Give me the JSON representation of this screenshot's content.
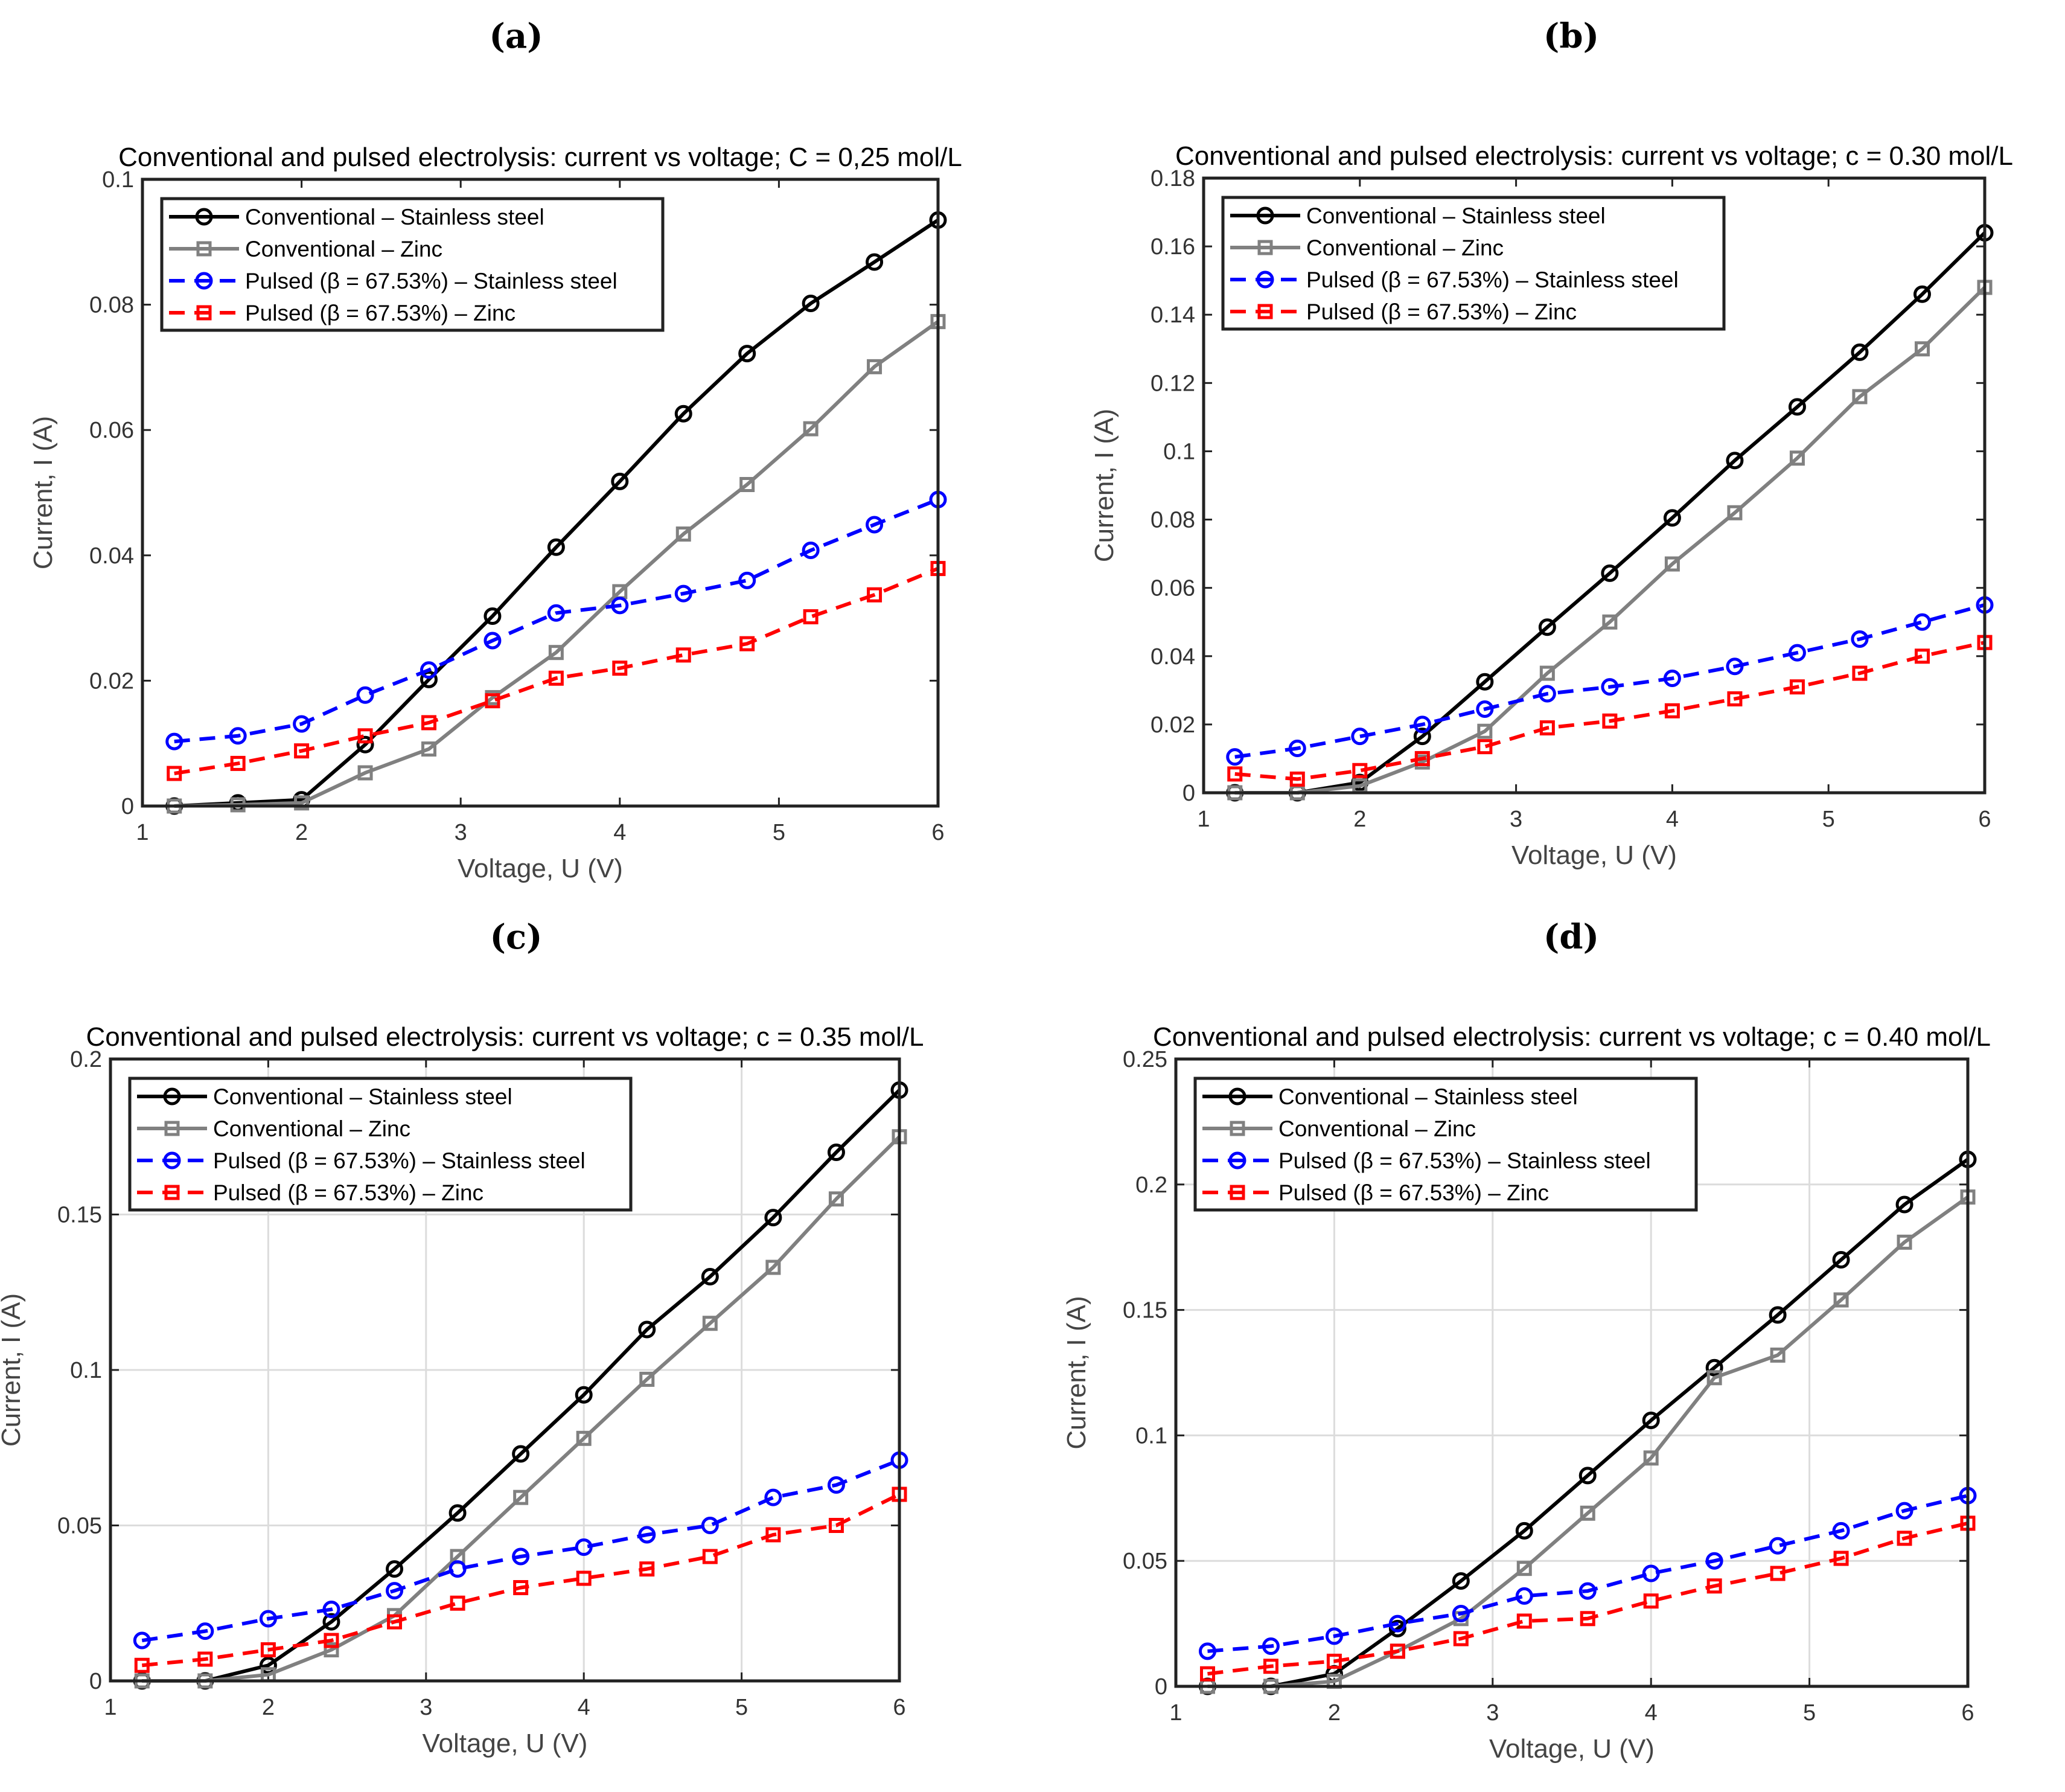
{
  "chart_data": [
    {
      "panel": "(a)",
      "type": "line",
      "title": "Conventional and pulsed electrolysis: current vs voltage; C = 0,25 mol/L",
      "xlabel": "Voltage, U (V)",
      "ylabel": "Current, I (A)",
      "xlim": [
        1,
        6
      ],
      "ylim": [
        0,
        0.1
      ],
      "xticks": [
        "1",
        "2",
        "3",
        "4",
        "5",
        "6"
      ],
      "yticks": [
        "0",
        "0.02",
        "0.04",
        "0.06",
        "0.08",
        "0.1"
      ],
      "grid": false,
      "legend_position": "top-left",
      "x": [
        1.2,
        1.6,
        2.0,
        2.4,
        2.8,
        3.2,
        3.6,
        4.0,
        4.4,
        4.8,
        5.2,
        5.6,
        6.0
      ],
      "series": [
        {
          "name": "Conventional – Stainless steel",
          "color": "#000000",
          "style": "solid",
          "marker": "circle",
          "values": [
            0,
            0.0005,
            0.001,
            0.0098,
            0.0202,
            0.0303,
            0.0413,
            0.0518,
            0.0626,
            0.0722,
            0.0802,
            0.0868,
            0.0935
          ]
        },
        {
          "name": "Conventional – Zinc",
          "color": "#808080",
          "style": "solid",
          "marker": "square",
          "values": [
            0,
            0.0002,
            0.0005,
            0.0053,
            0.0091,
            0.0173,
            0.0245,
            0.0342,
            0.0434,
            0.0513,
            0.0602,
            0.0701,
            0.0773
          ]
        },
        {
          "name": "Pulsed (β = 67.53%)  – Stainless steel",
          "color": "#0000ff",
          "style": "dashed",
          "marker": "circle",
          "values": [
            0.0103,
            0.0112,
            0.0131,
            0.0177,
            0.0217,
            0.0264,
            0.0308,
            0.032,
            0.0339,
            0.036,
            0.0408,
            0.0449,
            0.0489
          ]
        },
        {
          "name": "Pulsed (β = 67.53%)  – Zinc",
          "color": "#ff0000",
          "style": "dashed",
          "marker": "square",
          "values": [
            0.0052,
            0.0068,
            0.0088,
            0.0112,
            0.0133,
            0.0168,
            0.0204,
            0.022,
            0.0241,
            0.0259,
            0.0302,
            0.0337,
            0.0379
          ]
        }
      ]
    },
    {
      "panel": "(b)",
      "type": "line",
      "title": "Conventional and pulsed electrolysis: current vs voltage; c = 0.30 mol/L",
      "xlabel": "Voltage, U (V)",
      "ylabel": "Current, I (A)",
      "xlim": [
        1,
        6
      ],
      "ylim": [
        0,
        0.18
      ],
      "xticks": [
        "1",
        "2",
        "3",
        "4",
        "5",
        "6"
      ],
      "yticks": [
        "0",
        "0.02",
        "0.04",
        "0.06",
        "0.08",
        "0.1",
        "0.12",
        "0.14",
        "0.16",
        "0.18"
      ],
      "grid": false,
      "legend_position": "top-left",
      "x": [
        1.2,
        1.6,
        2.0,
        2.4,
        2.8,
        3.2,
        3.6,
        4.0,
        4.4,
        4.8,
        5.2,
        5.6,
        6.0
      ],
      "series": [
        {
          "name": "Conventional – Stainless steel",
          "color": "#000000",
          "style": "solid",
          "marker": "circle",
          "values": [
            0,
            0,
            0.003,
            0.0165,
            0.0325,
            0.0485,
            0.0643,
            0.0805,
            0.0973,
            0.113,
            0.129,
            0.146,
            0.164
          ]
        },
        {
          "name": "Conventional – Zinc",
          "color": "#808080",
          "style": "solid",
          "marker": "square",
          "values": [
            0,
            0,
            0.002,
            0.009,
            0.018,
            0.035,
            0.05,
            0.067,
            0.082,
            0.098,
            0.116,
            0.13,
            0.148
          ]
        },
        {
          "name": "Pulsed (β = 67.53%)  – Stainless steel",
          "color": "#0000ff",
          "style": "dashed",
          "marker": "circle",
          "values": [
            0.0105,
            0.013,
            0.0165,
            0.02,
            0.0245,
            0.029,
            0.031,
            0.0335,
            0.037,
            0.041,
            0.045,
            0.05,
            0.055
          ]
        },
        {
          "name": "Pulsed (β = 67.53%)  – Zinc",
          "color": "#ff0000",
          "style": "dashed",
          "marker": "square",
          "values": [
            0.0055,
            0.004,
            0.0065,
            0.01,
            0.0135,
            0.019,
            0.021,
            0.024,
            0.0275,
            0.031,
            0.035,
            0.04,
            0.044
          ]
        }
      ]
    },
    {
      "panel": "(c)",
      "type": "line",
      "title": "Conventional and pulsed electrolysis: current vs voltage; c = 0.35 mol/L",
      "xlabel": "Voltage, U (V)",
      "ylabel": "Current, I (A)",
      "xlim": [
        1,
        6
      ],
      "ylim": [
        0,
        0.2
      ],
      "xticks": [
        "1",
        "2",
        "3",
        "4",
        "5",
        "6"
      ],
      "yticks": [
        "0",
        "0.05",
        "0.1",
        "0.15",
        "0.2"
      ],
      "grid": true,
      "legend_position": "top-left",
      "x": [
        1.2,
        1.6,
        2.0,
        2.4,
        2.8,
        3.2,
        3.6,
        4.0,
        4.4,
        4.8,
        5.2,
        5.6,
        6.0
      ],
      "series": [
        {
          "name": "Conventional – Stainless steel",
          "color": "#000000",
          "style": "solid",
          "marker": "circle",
          "values": [
            0,
            0,
            0.005,
            0.019,
            0.036,
            0.054,
            0.073,
            0.092,
            0.113,
            0.13,
            0.149,
            0.17,
            0.19
          ]
        },
        {
          "name": "Conventional – Zinc",
          "color": "#808080",
          "style": "solid",
          "marker": "square",
          "values": [
            0,
            0,
            0.002,
            0.01,
            0.021,
            0.04,
            0.059,
            0.078,
            0.097,
            0.115,
            0.133,
            0.155,
            0.175
          ]
        },
        {
          "name": "Pulsed (β = 67.53%) – Stainless steel",
          "color": "#0000ff",
          "style": "dashed",
          "marker": "circle",
          "values": [
            0.013,
            0.016,
            0.02,
            0.023,
            0.029,
            0.036,
            0.04,
            0.043,
            0.047,
            0.05,
            0.059,
            0.063,
            0.071
          ]
        },
        {
          "name": "Pulsed (β = 67.53%) – Zinc",
          "color": "#ff0000",
          "style": "dashed",
          "marker": "square",
          "values": [
            0.005,
            0.007,
            0.01,
            0.013,
            0.019,
            0.025,
            0.03,
            0.033,
            0.036,
            0.04,
            0.047,
            0.05,
            0.06
          ]
        }
      ]
    },
    {
      "panel": "(d)",
      "type": "line",
      "title": "Conventional and pulsed electrolysis: current vs voltage; c = 0.40 mol/L",
      "xlabel": "Voltage, U (V)",
      "ylabel": "Current, I (A)",
      "xlim": [
        1,
        6
      ],
      "ylim": [
        0,
        0.25
      ],
      "xticks": [
        "1",
        "2",
        "3",
        "4",
        "5",
        "6"
      ],
      "yticks": [
        "0",
        "0.05",
        "0.1",
        "0.15",
        "0.2",
        "0.25"
      ],
      "grid": true,
      "legend_position": "top-left",
      "x": [
        1.2,
        1.6,
        2.0,
        2.4,
        2.8,
        3.2,
        3.6,
        4.0,
        4.4,
        4.8,
        5.2,
        5.6,
        6.0
      ],
      "series": [
        {
          "name": "Conventional – Stainless steel",
          "color": "#000000",
          "style": "solid",
          "marker": "circle",
          "values": [
            0,
            0,
            0.005,
            0.023,
            0.042,
            0.062,
            0.084,
            0.106,
            0.127,
            0.148,
            0.17,
            0.192,
            0.21
          ]
        },
        {
          "name": "Conventional – Zinc",
          "color": "#808080",
          "style": "solid",
          "marker": "square",
          "values": [
            0,
            0,
            0.002,
            0.014,
            0.027,
            0.047,
            0.069,
            0.091,
            0.123,
            0.132,
            0.154,
            0.177,
            0.195
          ]
        },
        {
          "name": "Pulsed (β = 67.53%) – Stainless steel",
          "color": "#0000ff",
          "style": "dashed",
          "marker": "circle",
          "values": [
            0.014,
            0.016,
            0.02,
            0.025,
            0.029,
            0.036,
            0.038,
            0.045,
            0.05,
            0.056,
            0.062,
            0.07,
            0.076
          ]
        },
        {
          "name": "Pulsed (β = 67.53%) – Zinc",
          "color": "#ff0000",
          "style": "dashed",
          "marker": "square",
          "values": [
            0.005,
            0.008,
            0.01,
            0.014,
            0.019,
            0.026,
            0.027,
            0.034,
            0.04,
            0.045,
            0.051,
            0.059,
            0.065
          ]
        }
      ]
    }
  ]
}
